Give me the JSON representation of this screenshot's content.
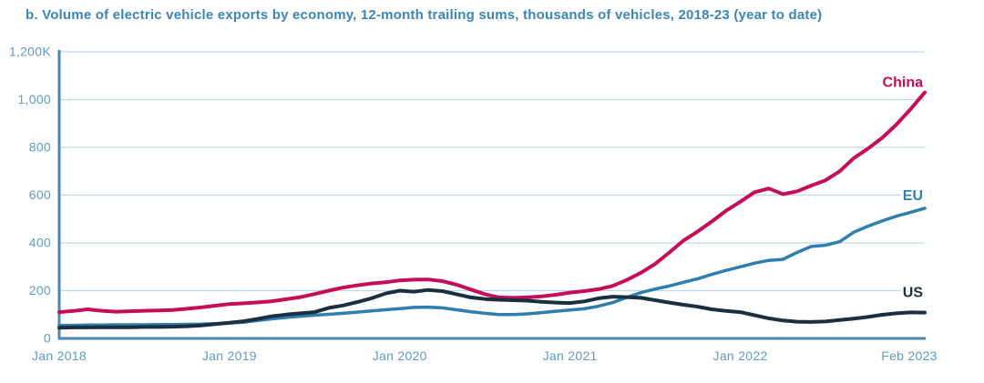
{
  "colors": {
    "title": "#3C86BC",
    "tick_labels": "#5E9CC6",
    "gridline": "#BFD9EA",
    "axis": "#4C86AF",
    "background": "#FFFFFF"
  },
  "chart_data": {
    "type": "line",
    "title": "b. Volume of electric vehicle exports by economy, 12-month trailing sums, thousands of vehicles, 2018-23 (year to date)",
    "ylabel": "",
    "xlabel": "",
    "unit": "thousands of vehicles",
    "ylim": [
      0,
      1200
    ],
    "grid": "horizontal",
    "legend_position": "end-of-line-labels",
    "x_start": "Jan 2018",
    "x_end": "Feb 2023",
    "points_per_series": 62,
    "x_tick_labels": [
      "Jan 2018",
      "Jan 2019",
      "Jan 2020",
      "Jan 2021",
      "Jan 2022",
      "Feb 2023"
    ],
    "x_tick_indices": [
      0,
      12,
      24,
      36,
      48,
      61
    ],
    "y_ticks": [
      {
        "value": 0,
        "label": "0"
      },
      {
        "value": 200,
        "label": "200"
      },
      {
        "value": 400,
        "label": "400"
      },
      {
        "value": 600,
        "label": "600"
      },
      {
        "value": 800,
        "label": "800"
      },
      {
        "value": 1000,
        "label": "1,000"
      },
      {
        "value": 1200,
        "label": "1,200K"
      }
    ],
    "series": [
      {
        "name": "China",
        "color": "#C50D59",
        "values": [
          110,
          115,
          122,
          116,
          112,
          114,
          116,
          117,
          119,
          124,
          130,
          137,
          144,
          147,
          151,
          156,
          164,
          173,
          186,
          200,
          213,
          222,
          230,
          235,
          243,
          246,
          247,
          240,
          225,
          205,
          185,
          172,
          170,
          172,
          176,
          183,
          192,
          198,
          206,
          220,
          245,
          275,
          312,
          360,
          410,
          448,
          490,
          535,
          572,
          612,
          628,
          604,
          616,
          640,
          662,
          700,
          755,
          795,
          840,
          896,
          960,
          1030
        ]
      },
      {
        "name": "EU",
        "color": "#2E7EAF",
        "values": [
          55,
          55,
          56,
          56,
          57,
          57,
          57,
          58,
          58,
          59,
          60,
          62,
          64,
          68,
          75,
          82,
          88,
          93,
          97,
          101,
          105,
          110,
          115,
          120,
          125,
          130,
          131,
          128,
          120,
          112,
          105,
          100,
          100,
          103,
          108,
          114,
          119,
          124,
          135,
          150,
          172,
          192,
          207,
          220,
          235,
          250,
          268,
          285,
          300,
          315,
          327,
          331,
          360,
          385,
          390,
          405,
          445,
          470,
          492,
          512,
          528,
          545
        ]
      },
      {
        "name": "US",
        "color": "#1B2F40",
        "values": [
          45,
          46,
          46,
          47,
          47,
          47,
          48,
          48,
          49,
          51,
          54,
          60,
          66,
          72,
          82,
          93,
          100,
          105,
          110,
          128,
          138,
          152,
          168,
          188,
          200,
          196,
          203,
          198,
          185,
          172,
          165,
          162,
          160,
          158,
          153,
          150,
          148,
          155,
          168,
          175,
          173,
          170,
          160,
          150,
          141,
          133,
          122,
          115,
          110,
          97,
          84,
          75,
          70,
          69,
          71,
          77,
          83,
          90,
          99,
          105,
          109,
          108
        ]
      }
    ]
  }
}
